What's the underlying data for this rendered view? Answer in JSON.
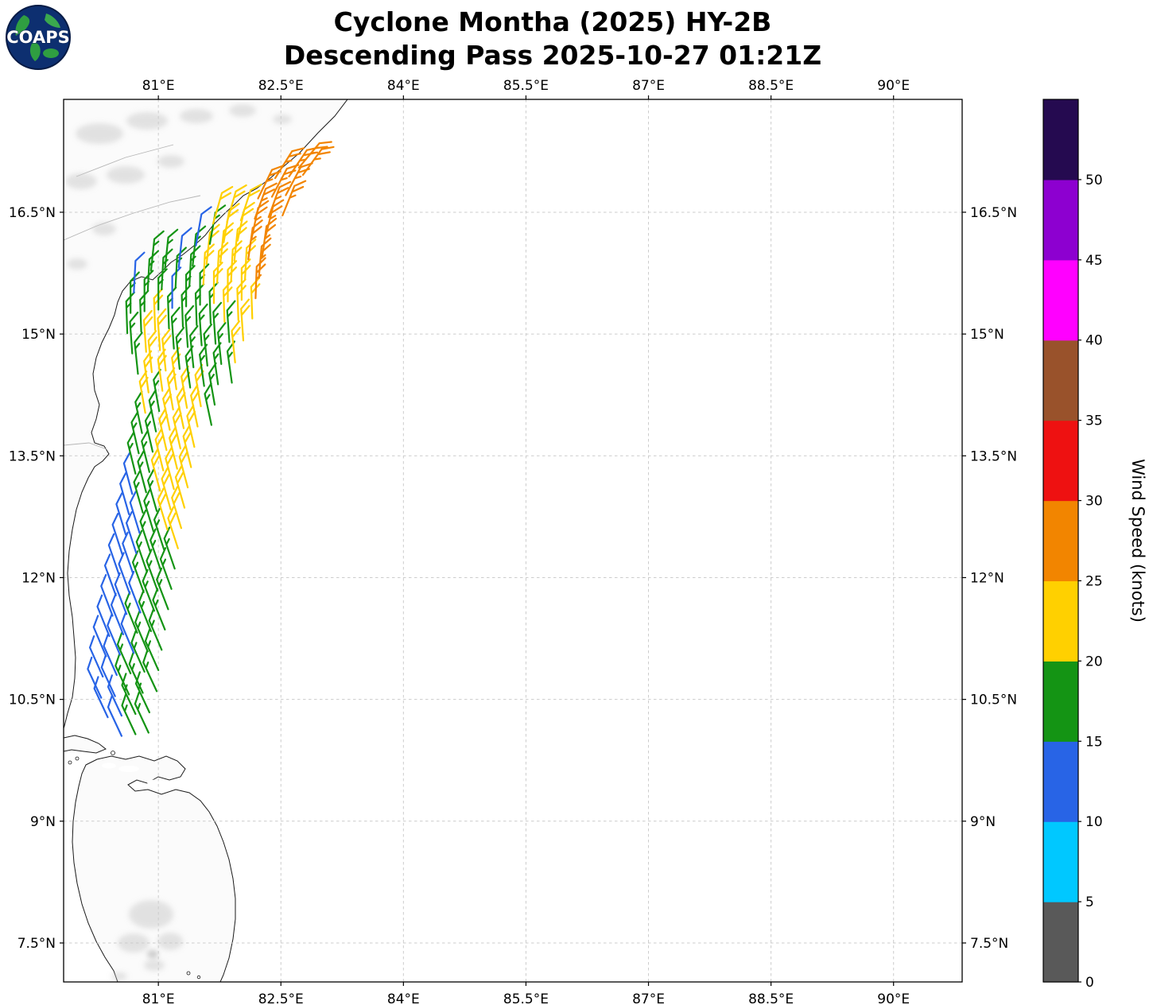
{
  "logo": {
    "text": "COAPS"
  },
  "chart_data": {
    "type": "scatter",
    "subtype": "wind-barb-map",
    "title": "Cyclone Montha (2025) HY-2B",
    "subtitle": "Descending Pass 2025-10-27 01:21Z",
    "grid": true,
    "xlim": [
      79.84,
      90.84
    ],
    "ylim": [
      7.02,
      17.89
    ],
    "x_ticks": [
      {
        "value": 81.0,
        "label": "81°E"
      },
      {
        "value": 82.5,
        "label": "82.5°E"
      },
      {
        "value": 84.0,
        "label": "84°E"
      },
      {
        "value": 85.5,
        "label": "85.5°E"
      },
      {
        "value": 87.0,
        "label": "87°E"
      },
      {
        "value": 88.5,
        "label": "88.5°E"
      },
      {
        "value": 90.0,
        "label": "90°E"
      }
    ],
    "y_ticks": [
      {
        "value": 16.5,
        "label": "16.5°N"
      },
      {
        "value": 15.0,
        "label": "15°N"
      },
      {
        "value": 13.5,
        "label": "13.5°N"
      },
      {
        "value": 12.0,
        "label": "12°N"
      },
      {
        "value": 10.5,
        "label": "10.5°N"
      },
      {
        "value": 9.0,
        "label": "9°N"
      },
      {
        "value": 7.5,
        "label": "7.5°N"
      }
    ],
    "colorbar": {
      "label": "Wind Speed (knots)",
      "tick_values": [
        0,
        5,
        10,
        15,
        20,
        25,
        30,
        35,
        40,
        45,
        50
      ],
      "bin_size": 5,
      "colors": [
        "#595959",
        "#00c8ff",
        "#2864e6",
        "#149414",
        "#ffd000",
        "#f28500",
        "#ee1111",
        "#99522b",
        "#ff00ff",
        "#8d00d0",
        "#250a50"
      ]
    },
    "barb_format": [
      "lon_deg_east",
      "lat_deg_north",
      "speed_knots",
      "wind_from_deg"
    ],
    "barbs": [
      [
        80.55,
        10.05,
        10,
        335
      ],
      [
        80.72,
        10.07,
        15,
        335
      ],
      [
        80.88,
        10.09,
        15,
        335
      ],
      [
        80.38,
        10.28,
        10,
        335
      ],
      [
        80.55,
        10.3,
        10,
        335
      ],
      [
        80.72,
        10.32,
        15,
        335
      ],
      [
        80.89,
        10.34,
        15,
        335
      ],
      [
        80.3,
        10.52,
        10,
        335
      ],
      [
        80.47,
        10.54,
        10,
        335
      ],
      [
        80.64,
        10.56,
        15,
        335
      ],
      [
        80.81,
        10.58,
        15,
        335
      ],
      [
        80.98,
        10.6,
        15,
        335
      ],
      [
        80.32,
        10.78,
        10,
        336
      ],
      [
        80.49,
        10.8,
        10,
        336
      ],
      [
        80.66,
        10.82,
        15,
        336
      ],
      [
        80.83,
        10.84,
        15,
        336
      ],
      [
        81.0,
        10.86,
        15,
        336
      ],
      [
        80.36,
        11.03,
        10,
        337
      ],
      [
        80.53,
        11.05,
        10,
        337
      ],
      [
        80.7,
        11.07,
        10,
        337
      ],
      [
        80.87,
        11.09,
        15,
        337
      ],
      [
        81.04,
        11.11,
        15,
        337
      ],
      [
        80.4,
        11.28,
        10,
        338
      ],
      [
        80.57,
        11.3,
        10,
        338
      ],
      [
        80.74,
        11.32,
        15,
        338
      ],
      [
        80.91,
        11.34,
        15,
        338
      ],
      [
        81.08,
        11.36,
        15,
        338
      ],
      [
        80.44,
        11.53,
        10,
        339
      ],
      [
        80.61,
        11.55,
        10,
        339
      ],
      [
        80.78,
        11.57,
        10,
        339
      ],
      [
        80.95,
        11.59,
        15,
        339
      ],
      [
        81.12,
        11.61,
        15,
        339
      ],
      [
        80.48,
        11.78,
        10,
        340
      ],
      [
        80.65,
        11.8,
        10,
        340
      ],
      [
        80.82,
        11.82,
        15,
        340
      ],
      [
        80.99,
        11.84,
        15,
        340
      ],
      [
        81.16,
        11.86,
        15,
        340
      ],
      [
        80.52,
        12.03,
        10,
        341
      ],
      [
        80.69,
        12.05,
        10,
        341
      ],
      [
        80.86,
        12.07,
        15,
        341
      ],
      [
        81.03,
        12.09,
        15,
        341
      ],
      [
        81.2,
        12.11,
        15,
        341
      ],
      [
        80.56,
        12.28,
        10,
        342
      ],
      [
        80.73,
        12.3,
        10,
        342
      ],
      [
        80.9,
        12.32,
        15,
        342
      ],
      [
        81.07,
        12.34,
        15,
        342
      ],
      [
        81.24,
        12.36,
        20,
        342
      ],
      [
        80.6,
        12.53,
        10,
        343
      ],
      [
        80.77,
        12.55,
        10,
        343
      ],
      [
        80.94,
        12.57,
        15,
        343
      ],
      [
        81.11,
        12.59,
        20,
        343
      ],
      [
        81.28,
        12.61,
        20,
        343
      ],
      [
        80.64,
        12.78,
        10,
        344
      ],
      [
        80.81,
        12.8,
        15,
        344
      ],
      [
        80.98,
        12.82,
        15,
        344
      ],
      [
        81.15,
        12.84,
        20,
        344
      ],
      [
        81.32,
        12.86,
        20,
        344
      ],
      [
        80.68,
        13.03,
        10,
        345
      ],
      [
        80.85,
        13.05,
        15,
        345
      ],
      [
        81.02,
        13.07,
        20,
        345
      ],
      [
        81.19,
        13.09,
        20,
        345
      ],
      [
        81.36,
        13.11,
        20,
        345
      ],
      [
        80.72,
        13.28,
        15,
        346
      ],
      [
        80.89,
        13.3,
        15,
        346
      ],
      [
        81.06,
        13.32,
        20,
        346
      ],
      [
        81.23,
        13.34,
        20,
        346
      ],
      [
        81.4,
        13.36,
        20,
        346
      ],
      [
        80.76,
        13.53,
        15,
        347
      ],
      [
        80.93,
        13.55,
        15,
        347
      ],
      [
        81.1,
        13.57,
        20,
        347
      ],
      [
        81.27,
        13.59,
        20,
        347
      ],
      [
        81.44,
        13.61,
        20,
        347
      ],
      [
        80.8,
        13.78,
        15,
        348
      ],
      [
        80.97,
        13.8,
        15,
        348
      ],
      [
        81.14,
        13.82,
        20,
        348
      ],
      [
        81.31,
        13.84,
        20,
        348
      ],
      [
        81.48,
        13.86,
        20,
        348
      ],
      [
        81.65,
        13.88,
        15,
        348
      ],
      [
        80.84,
        14.03,
        20,
        350
      ],
      [
        81.01,
        14.05,
        15,
        350
      ],
      [
        81.18,
        14.07,
        20,
        350
      ],
      [
        81.35,
        14.09,
        20,
        350
      ],
      [
        81.52,
        14.11,
        20,
        350
      ],
      [
        81.69,
        14.13,
        15,
        350
      ],
      [
        80.88,
        14.28,
        20,
        352
      ],
      [
        81.05,
        14.3,
        20,
        352
      ],
      [
        81.22,
        14.32,
        20,
        352
      ],
      [
        81.39,
        14.34,
        15,
        352
      ],
      [
        81.56,
        14.36,
        15,
        352
      ],
      [
        81.73,
        14.38,
        15,
        352
      ],
      [
        81.9,
        14.4,
        15,
        352
      ],
      [
        80.75,
        14.51,
        15,
        354
      ],
      [
        80.92,
        14.53,
        20,
        354
      ],
      [
        81.09,
        14.55,
        20,
        354
      ],
      [
        81.26,
        14.57,
        15,
        354
      ],
      [
        81.43,
        14.59,
        15,
        354
      ],
      [
        81.6,
        14.61,
        15,
        354
      ],
      [
        81.77,
        14.63,
        15,
        354
      ],
      [
        81.94,
        14.65,
        20,
        354
      ],
      [
        80.68,
        14.76,
        15,
        356
      ],
      [
        80.85,
        14.78,
        20,
        356
      ],
      [
        81.02,
        14.8,
        20,
        356
      ],
      [
        81.19,
        14.82,
        15,
        356
      ],
      [
        81.36,
        14.84,
        15,
        356
      ],
      [
        81.53,
        14.86,
        15,
        356
      ],
      [
        81.7,
        14.88,
        15,
        356
      ],
      [
        81.87,
        14.9,
        15,
        356
      ],
      [
        82.04,
        14.92,
        20,
        356
      ],
      [
        80.62,
        15.01,
        15,
        358
      ],
      [
        80.79,
        15.03,
        15,
        358
      ],
      [
        80.96,
        15.05,
        20,
        358
      ],
      [
        81.13,
        15.07,
        15,
        358
      ],
      [
        81.3,
        15.09,
        15,
        358
      ],
      [
        81.47,
        15.11,
        15,
        358
      ],
      [
        81.64,
        15.13,
        15,
        358
      ],
      [
        81.81,
        15.15,
        20,
        358
      ],
      [
        81.98,
        15.17,
        20,
        358
      ],
      [
        82.15,
        15.19,
        20,
        358
      ],
      [
        80.66,
        15.26,
        15,
        0
      ],
      [
        80.83,
        15.28,
        15,
        0
      ],
      [
        81.0,
        15.3,
        15,
        0
      ],
      [
        81.17,
        15.32,
        10,
        0
      ],
      [
        81.34,
        15.34,
        15,
        0
      ],
      [
        81.51,
        15.36,
        15,
        0
      ],
      [
        81.68,
        15.38,
        20,
        0
      ],
      [
        81.85,
        15.4,
        20,
        0
      ],
      [
        82.02,
        15.42,
        20,
        0
      ],
      [
        82.19,
        15.44,
        25,
        2
      ],
      [
        80.7,
        15.51,
        10,
        3
      ],
      [
        80.87,
        15.53,
        15,
        3
      ],
      [
        81.04,
        15.55,
        15,
        3
      ],
      [
        81.21,
        15.57,
        15,
        3
      ],
      [
        81.38,
        15.59,
        15,
        3
      ],
      [
        81.55,
        15.61,
        20,
        3
      ],
      [
        81.72,
        15.63,
        20,
        3
      ],
      [
        81.89,
        15.65,
        20,
        3
      ],
      [
        82.06,
        15.67,
        20,
        3
      ],
      [
        82.23,
        15.69,
        25,
        5
      ],
      [
        80.91,
        15.78,
        15,
        6
      ],
      [
        81.08,
        15.8,
        15,
        6
      ],
      [
        81.25,
        15.82,
        10,
        6
      ],
      [
        81.42,
        15.84,
        15,
        6
      ],
      [
        81.59,
        15.86,
        20,
        6
      ],
      [
        81.76,
        15.88,
        20,
        6
      ],
      [
        81.93,
        15.9,
        20,
        6
      ],
      [
        82.1,
        15.92,
        25,
        8
      ],
      [
        82.27,
        15.94,
        25,
        8
      ],
      [
        81.46,
        16.09,
        10,
        10
      ],
      [
        81.63,
        16.11,
        15,
        10
      ],
      [
        81.8,
        16.13,
        20,
        10
      ],
      [
        81.97,
        16.15,
        20,
        12
      ],
      [
        82.14,
        16.17,
        25,
        12
      ],
      [
        82.31,
        16.19,
        25,
        14
      ],
      [
        81.67,
        16.36,
        20,
        16
      ],
      [
        81.84,
        16.38,
        20,
        16
      ],
      [
        82.01,
        16.4,
        20,
        18
      ],
      [
        82.18,
        16.42,
        25,
        20
      ],
      [
        82.35,
        16.44,
        25,
        20
      ],
      [
        82.52,
        16.46,
        25,
        22
      ],
      [
        82.22,
        16.67,
        25,
        26
      ],
      [
        82.39,
        16.69,
        25,
        28
      ],
      [
        82.56,
        16.71,
        25,
        28
      ],
      [
        82.43,
        16.92,
        25,
        32
      ],
      [
        82.6,
        16.94,
        25,
        34
      ],
      [
        82.77,
        16.96,
        25,
        36
      ],
      [
        82.72,
        17.05,
        25,
        40
      ]
    ]
  }
}
